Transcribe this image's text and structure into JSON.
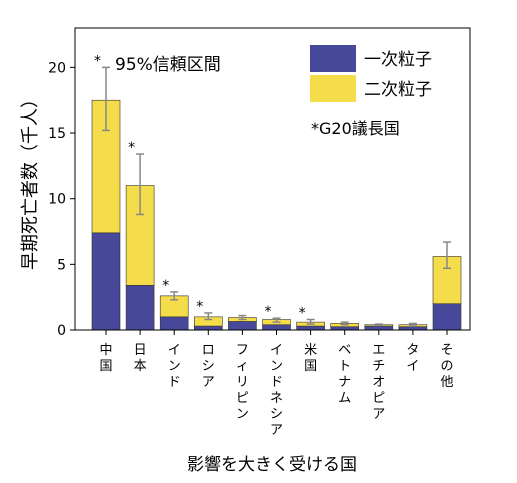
{
  "chart_data": {
    "type": "bar",
    "stacked": true,
    "error_bars": true,
    "ylabel": "早期死亡者数（千人）",
    "xlabel": "影響を大きく受ける国",
    "ylim": [
      0,
      23
    ],
    "yticks": [
      0,
      5,
      10,
      15,
      20
    ],
    "grid": false,
    "annotation_ci": "95%信頼区間",
    "annotation_note": "*G20議長国",
    "legend_position": "top-right",
    "categories": [
      "中国",
      "日本",
      "インド",
      "ロシア",
      "フィリピン",
      "インドネシア",
      "米国",
      "ベトナム",
      "エチオピア",
      "タイ",
      "その他"
    ],
    "g20_marked": [
      true,
      true,
      true,
      true,
      false,
      true,
      true,
      false,
      false,
      false,
      false
    ],
    "series": [
      {
        "name": "一次粒子",
        "color": "#48489a",
        "values": [
          7.4,
          3.4,
          1.0,
          0.3,
          0.65,
          0.4,
          0.3,
          0.25,
          0.3,
          0.25,
          2.0
        ]
      },
      {
        "name": "二次粒子",
        "color": "#f4dc4a",
        "values": [
          10.1,
          7.6,
          1.6,
          0.7,
          0.3,
          0.4,
          0.3,
          0.25,
          0.1,
          0.15,
          3.6
        ]
      }
    ],
    "error_low": [
      15.2,
      8.8,
      2.3,
      0.8,
      0.8,
      0.6,
      0.45,
      0.4,
      0.35,
      0.3,
      4.7
    ],
    "error_high": [
      20.0,
      13.4,
      2.9,
      1.3,
      1.1,
      0.9,
      0.8,
      0.6,
      0.45,
      0.5,
      6.7
    ]
  }
}
